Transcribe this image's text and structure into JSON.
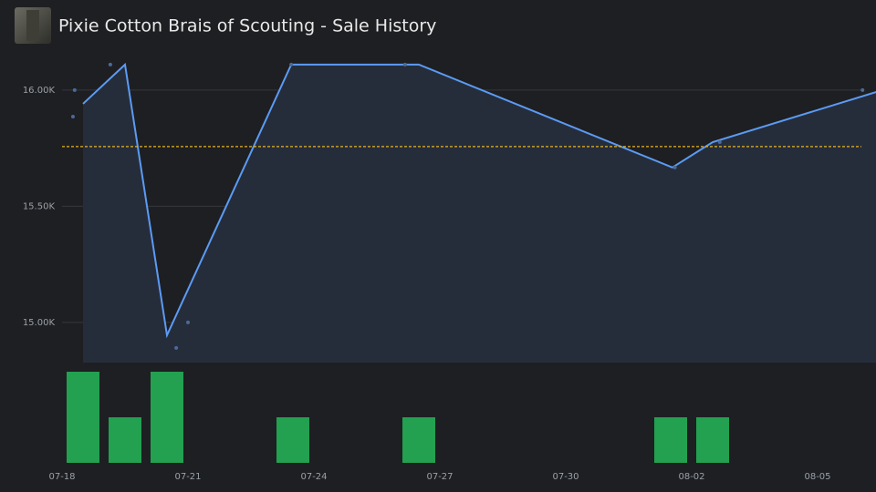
{
  "header": {
    "title": "Pixie Cotton Brais of Scouting - Sale History"
  },
  "chart_data": [
    {
      "type": "line",
      "x": [
        0.5,
        1.5,
        2.5,
        5.46,
        8.5,
        14.54,
        15.5,
        19.4
      ],
      "series": [
        {
          "color": "#5b9bf5",
          "values": [
            15941,
            16110,
            14945,
            16110,
            16110,
            15667,
            15776,
            15992
          ]
        }
      ],
      "sales": {
        "color": "#4a6a9a",
        "x": [
          0.3,
          0.26,
          1.15,
          2.72,
          3.0,
          5.46,
          8.17,
          14.6,
          15.67,
          19.07
        ],
        "values": [
          16000,
          15886,
          16110,
          14890,
          15000,
          16110,
          16110,
          15667,
          15776,
          16000
        ]
      },
      "average": {
        "color": "#e6b422",
        "value": 15757
      },
      "area_color": "#262d3a",
      "ylim": [
        14827,
        16231
      ],
      "yticks": [
        {
          "value": 15000,
          "label": "15.00K"
        },
        {
          "value": 15500,
          "label": "15.50K"
        },
        {
          "value": 16000,
          "label": "16.00K"
        }
      ],
      "xlim": [
        0,
        19.39
      ],
      "xticks": [
        {
          "value": 0,
          "label": "07-18"
        },
        {
          "value": 3,
          "label": "07-21"
        },
        {
          "value": 6,
          "label": "07-24"
        },
        {
          "value": 9,
          "label": "07-27"
        },
        {
          "value": 12,
          "label": "07-30"
        },
        {
          "value": 15,
          "label": "08-02"
        },
        {
          "value": 18,
          "label": "08-05"
        }
      ],
      "grid": true
    },
    {
      "type": "bar",
      "x": [
        0.5,
        1.5,
        2.5,
        5.5,
        8.5,
        14.5,
        15.5
      ],
      "values": [
        2,
        1,
        2,
        1,
        1,
        1,
        1
      ],
      "color": "#23a050",
      "ylim": [
        0,
        2
      ],
      "xlim": [
        0,
        19.39
      ]
    }
  ]
}
